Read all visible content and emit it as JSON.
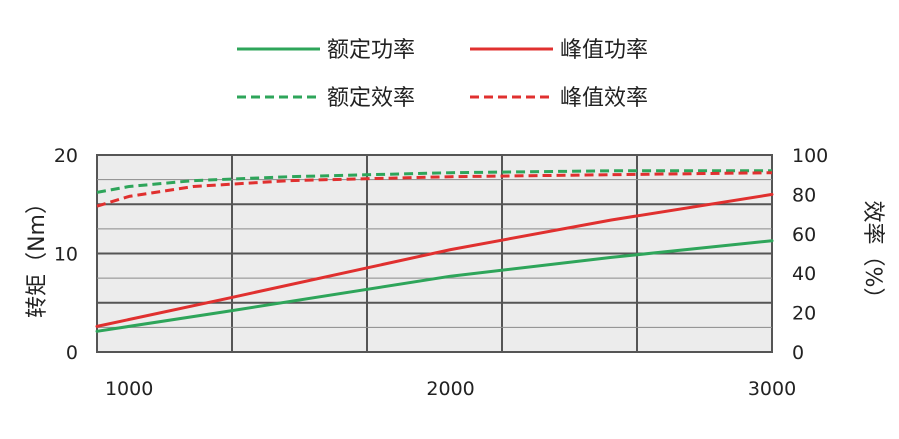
{
  "chart_data": {
    "type": "line",
    "x_ticks": [
      1000,
      2000,
      3000
    ],
    "xlim": [
      900,
      3000
    ],
    "ylim_left": [
      0,
      20
    ],
    "yticks_left": [
      0,
      10,
      20
    ],
    "ylim_right": [
      0,
      100
    ],
    "yticks_right": [
      0,
      20,
      40,
      60,
      80,
      100
    ],
    "ylabel_left": "转矩（Nm）",
    "ylabel_right": "效率（%）",
    "grid": true,
    "legend_position": "top",
    "series": [
      {
        "name": "额定功率",
        "axis": "left",
        "style": "solid",
        "color": "#2ea55a",
        "x": [
          900,
          1300,
          2000,
          2500,
          3000
        ],
        "y": [
          2.1,
          4.1,
          7.7,
          9.6,
          11.3
        ]
      },
      {
        "name": "峰值功率",
        "axis": "right",
        "style": "solid",
        "color": "#e0302f",
        "x": [
          900,
          1300,
          2000,
          2500,
          3000
        ],
        "y": [
          13,
          27,
          52,
          67,
          80
        ]
      },
      {
        "name": "额定效率",
        "axis": "right",
        "style": "dashed",
        "color": "#2ea55a",
        "x": [
          900,
          1000,
          1200,
          1500,
          2000,
          2500,
          3000
        ],
        "y": [
          81,
          84,
          87,
          89,
          91,
          92,
          92
        ]
      },
      {
        "name": "峰值效率",
        "axis": "right",
        "style": "dashed",
        "color": "#e0302f",
        "x": [
          900,
          1000,
          1200,
          1500,
          2000,
          2500,
          3000
        ],
        "y": [
          74,
          79,
          84,
          87,
          89,
          90,
          91
        ]
      }
    ]
  }
}
